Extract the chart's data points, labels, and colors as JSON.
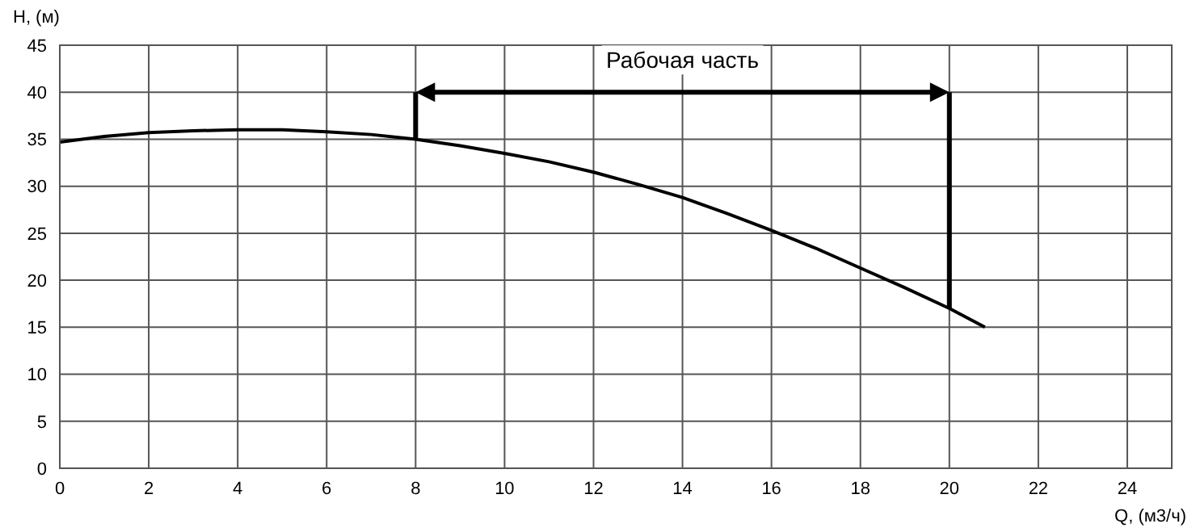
{
  "chart_data": {
    "type": "line",
    "xlabel": "Q, (м3/ч)",
    "ylabel": "H, (м)",
    "x": [
      0,
      1,
      2,
      3,
      4,
      5,
      6,
      7,
      8,
      9,
      10,
      11,
      12,
      13,
      14,
      15,
      16,
      17,
      18,
      19,
      20,
      20.8
    ],
    "series": [
      {
        "color": "#000000",
        "values": [
          34.7,
          35.3,
          35.7,
          35.9,
          36,
          36,
          35.8,
          35.5,
          35,
          34.3,
          33.5,
          32.6,
          31.5,
          30.2,
          28.8,
          27.1,
          25.3,
          23.4,
          21.3,
          19.2,
          17,
          15
        ]
      }
    ],
    "xlim": [
      0,
      25
    ],
    "xticks": [
      0,
      2,
      4,
      6,
      8,
      10,
      12,
      14,
      16,
      18,
      20,
      22,
      24
    ],
    "ylim": [
      0,
      45
    ],
    "yticks": [
      0,
      5,
      10,
      15,
      20,
      25,
      30,
      35,
      40,
      45
    ],
    "grid": true,
    "marker": "none",
    "line_style": "solid",
    "ref_lines": [
      {
        "axis": "x",
        "value": 8
      },
      {
        "axis": "x",
        "value": 20
      }
    ],
    "annotations": [
      "Рабочая часть"
    ]
  }
}
